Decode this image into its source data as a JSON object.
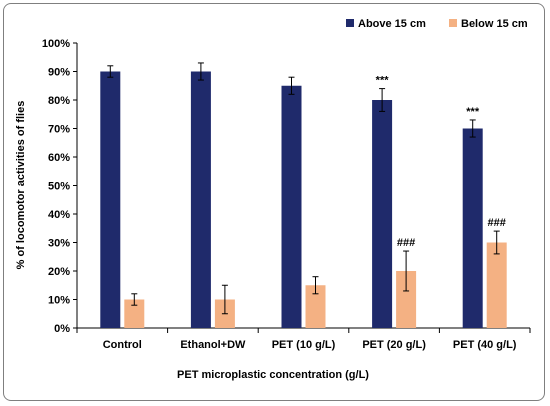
{
  "chart_data": {
    "type": "bar",
    "categories": [
      "Control",
      "Ethanol+DW",
      "PET (10 g/L)",
      "PET (20 g/L)",
      "PET (40 g/L)"
    ],
    "series": [
      {
        "name": "Above 15 cm",
        "color": "#1f2a6b",
        "values": [
          90,
          90,
          85,
          80,
          70
        ],
        "errors": [
          2,
          3,
          3,
          4,
          3
        ],
        "annotations": [
          "",
          "",
          "",
          "***",
          "***"
        ]
      },
      {
        "name": "Below 15 cm",
        "color": "#f4b183",
        "values": [
          10,
          10,
          15,
          20,
          30
        ],
        "errors": [
          2,
          5,
          3,
          7,
          4
        ],
        "annotations": [
          "",
          "",
          "",
          "###",
          "###"
        ]
      }
    ],
    "ylabel": "% of locomotor activities of flies",
    "xlabel": "PET microplastic concentration (g/L)",
    "ylim": [
      0,
      100
    ],
    "yticks": [
      "0%",
      "10%",
      "20%",
      "30%",
      "40%",
      "50%",
      "60%",
      "70%",
      "80%",
      "90%",
      "100%"
    ],
    "grid": false,
    "legend_position": "top-right"
  }
}
